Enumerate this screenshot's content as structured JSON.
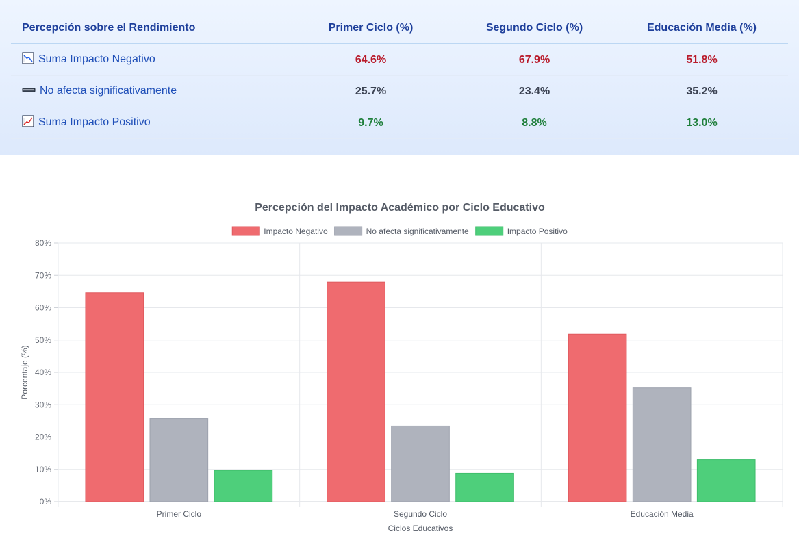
{
  "table": {
    "headers": [
      "Percepción sobre el Rendimiento",
      "Primer Ciclo (%)",
      "Segundo Ciclo (%)",
      "Educación Media (%)"
    ],
    "rows": [
      {
        "icon": "chart-decreasing-icon",
        "label": "Suma Impacto Negativo",
        "values": [
          "64.6%",
          "67.9%",
          "51.8%"
        ]
      },
      {
        "icon": "minus-bar-icon",
        "label": "No afecta significativamente",
        "values": [
          "25.7%",
          "23.4%",
          "35.2%"
        ]
      },
      {
        "icon": "chart-increasing-icon",
        "label": "Suma Impacto Positivo",
        "values": [
          "9.7%",
          "8.8%",
          "13.0%"
        ]
      }
    ]
  },
  "chart_data": {
    "type": "bar",
    "title": "Percepción del Impacto Académico por Ciclo Educativo",
    "xlabel": "Ciclos Educativos",
    "ylabel": "Porcentaje (%)",
    "categories": [
      "Primer Ciclo",
      "Segundo Ciclo",
      "Educación Media"
    ],
    "ylim": [
      0,
      80
    ],
    "yticks": [
      "0%",
      "10%",
      "20%",
      "30%",
      "40%",
      "50%",
      "60%",
      "70%",
      "80%"
    ],
    "legend_position": "top",
    "grid": true,
    "series": [
      {
        "name": "Impacto Negativo",
        "values": [
          64.6,
          67.9,
          51.8
        ],
        "color": "#ef6b6f",
        "border": "#e05a5f"
      },
      {
        "name": "No afecta significativamente",
        "values": [
          25.7,
          23.4,
          35.2
        ],
        "color": "#afb3bd",
        "border": "#9ca1ad"
      },
      {
        "name": "Impacto Positivo",
        "values": [
          9.7,
          8.8,
          13.0
        ],
        "color": "#4ecf7b",
        "border": "#3fbe6b"
      }
    ]
  }
}
